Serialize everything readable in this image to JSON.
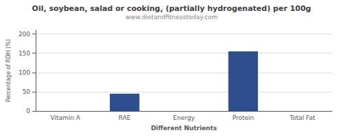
{
  "chart_data": {
    "type": "bar",
    "title": "Oil, soybean, salad or cooking, (partially hydrogenated) per 100g",
    "subtitle": "www.dietandfitnesstoday.com",
    "xlabel": "Different Nutrients",
    "ylabel": "Percentage of RDH (%)",
    "categories": [
      "Vitamin A",
      "RAE",
      "Energy",
      "Protein",
      "Total Fat"
    ],
    "values": [
      0,
      45,
      0,
      155,
      0
    ],
    "color": "#2e4e8e",
    "ylim": [
      0,
      210
    ],
    "yticks": [
      0,
      50,
      100,
      150,
      200
    ],
    "grid": true
  }
}
